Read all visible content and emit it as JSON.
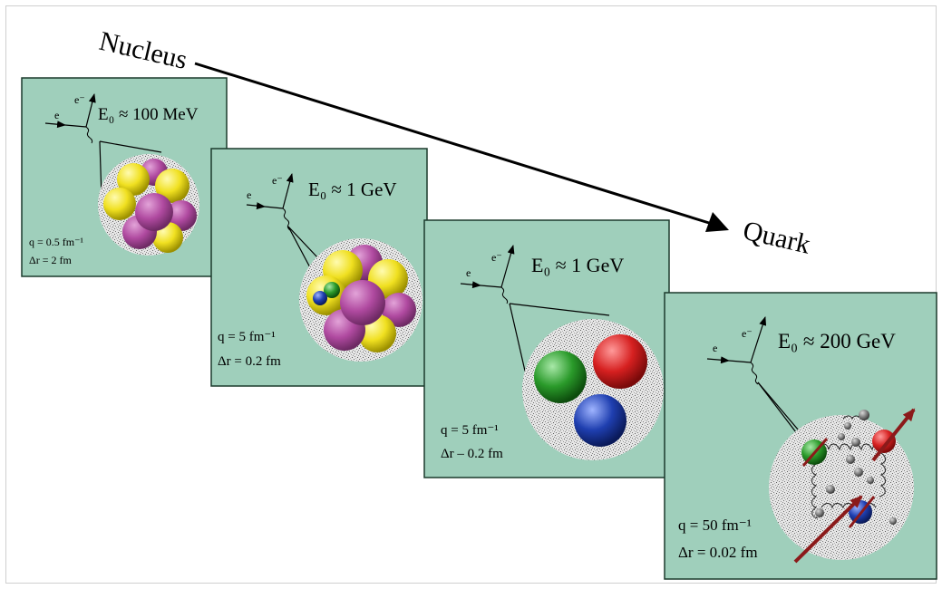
{
  "title_left": "Nucleus",
  "title_right": "Quark",
  "colors": {
    "panel": "#9fcfbb",
    "proton_purple": "#b04aa0",
    "neutron_yellow": "#f0e020",
    "quark_red": "#d62020",
    "quark_green": "#2a9a2a",
    "quark_blue": "#1f3fb0",
    "arrow_dark_red": "#8b1a1a"
  },
  "panels": [
    {
      "electron_in": "e",
      "electron_out": "e⁻",
      "energy": "E₀ ≈ 100 MeV",
      "momentum": "q = 0.5 fm⁻¹",
      "resolution": "Δr = 2 fm",
      "content": "nucleus"
    },
    {
      "electron_in": "e",
      "electron_out": "e⁻",
      "energy": "E₀ ≈ 1 GeV",
      "momentum": "q = 5 fm⁻¹",
      "resolution": "Δr = 0.2 fm",
      "content": "nucleus with quarks"
    },
    {
      "electron_in": "e",
      "electron_out": "e⁻",
      "energy": "E₀ ≈ 1 GeV",
      "momentum": "q = 5 fm⁻¹",
      "resolution": "Δr – 0.2 fm",
      "content": "nucleon (three quarks)"
    },
    {
      "electron_in": "e",
      "electron_out": "e⁻",
      "energy": "E₀ ≈ 200 GeV",
      "momentum": "q = 50 fm⁻¹",
      "resolution": "Δr = 0.02 fm",
      "content": "quarks, gluons and sea quarks"
    }
  ]
}
